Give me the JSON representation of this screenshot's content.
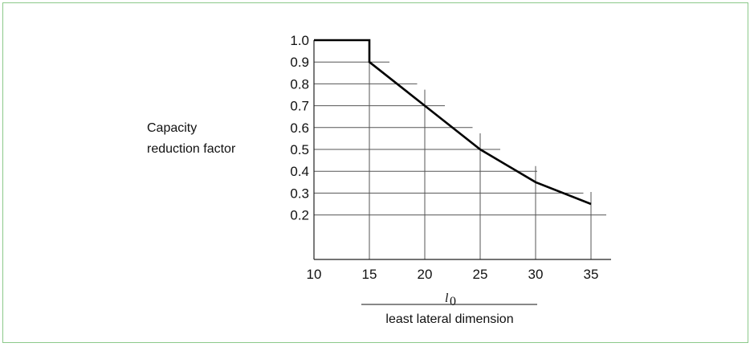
{
  "chart_data": {
    "type": "line",
    "ylabel_lines": [
      "Capacity",
      "reduction factor"
    ],
    "xlabel_numerator": "l",
    "xlabel_numerator_subscript": "0",
    "xlabel_denominator": "least lateral dimension",
    "xlim": [
      10,
      37
    ],
    "ylim": [
      0.0,
      1.0
    ],
    "x_ticks": [
      10,
      15,
      20,
      25,
      30,
      35
    ],
    "x_tick_labels": [
      "10",
      "15",
      "20",
      "25",
      "30",
      "35"
    ],
    "y_ticks": [
      1.0,
      0.9,
      0.8,
      0.7,
      0.6,
      0.5,
      0.4,
      0.3,
      0.2
    ],
    "y_tick_labels": [
      "1.0",
      "0.9",
      "0.8",
      "0.7",
      "0.6",
      "0.5",
      "0.4",
      "0.3",
      "0.2"
    ],
    "grid": true,
    "series": [
      {
        "x": [
          10,
          15,
          15,
          20,
          25,
          30,
          35
        ],
        "y": [
          1.0,
          1.0,
          0.9,
          0.7,
          0.5,
          0.35,
          0.25
        ],
        "color": "#000000"
      }
    ],
    "frame_color": "#8cc98a"
  }
}
